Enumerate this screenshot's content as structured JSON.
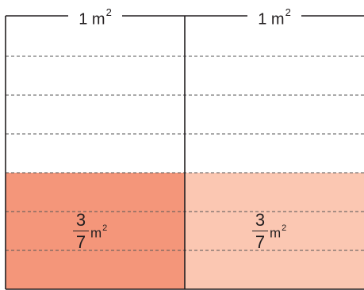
{
  "widths": [
    {
      "number": "1",
      "unit": "m",
      "power": "2"
    },
    {
      "number": "1",
      "unit": "m",
      "power": "2"
    }
  ],
  "parts": [
    {
      "numerator": "3",
      "denominator": "7",
      "unit": "m",
      "power": "2",
      "fill": "#f4967a"
    },
    {
      "numerator": "3",
      "denominator": "7",
      "unit": "m",
      "power": "2",
      "fill": "#fbc7b2"
    }
  ],
  "total_rows": 7,
  "shaded_rows": 3,
  "colors": {
    "line": "#231f20",
    "dash": "#555555"
  }
}
